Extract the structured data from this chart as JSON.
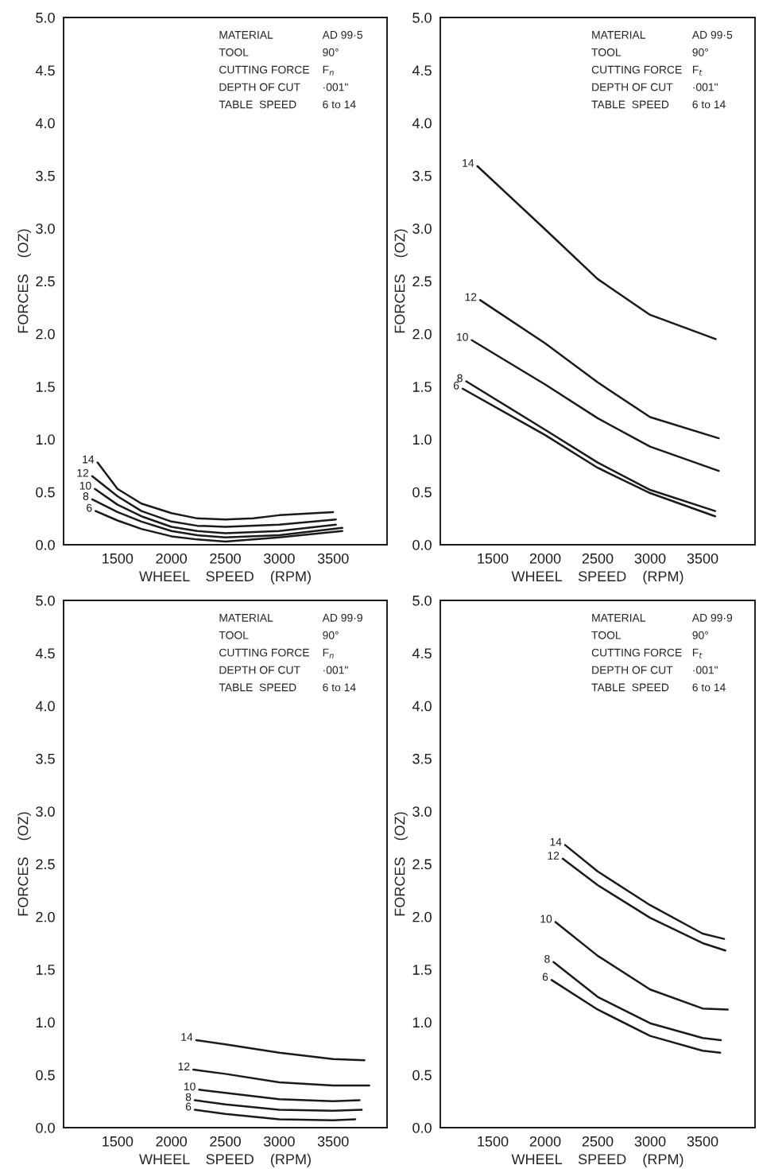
{
  "chart_data": [
    {
      "type": "line",
      "xlabel": "WHEEL    SPEED    (RPM)",
      "ylabel": "FORCES    (OZ)",
      "xlim": [
        1000,
        4000
      ],
      "xticks": [
        1500,
        2000,
        2500,
        3000,
        3500
      ],
      "ylim": [
        0,
        5
      ],
      "yticks": [
        {
          "value": 0,
          "label": "0.0"
        },
        {
          "value": 0.5,
          "label": "0.5"
        },
        {
          "value": 1,
          "label": "1.0"
        },
        {
          "value": 1.5,
          "label": "1.5"
        },
        {
          "value": 2,
          "label": "2.0"
        },
        {
          "value": 2.5,
          "label": "2.5"
        },
        {
          "value": 3,
          "label": "3.0"
        },
        {
          "value": 3.5,
          "label": "3.5"
        },
        {
          "value": 4,
          "label": "4.0"
        },
        {
          "value": 4.5,
          "label": "4.5"
        },
        {
          "value": 5,
          "label": "5.0"
        }
      ],
      "grid": false,
      "legend": false,
      "annotations": [
        "MATERIAL",
        "AD 99·5",
        "TOOL",
        "90°",
        "CUTTING FORCE",
        "F$_{n}$",
        "DEPTH OF CUT",
        "·001\"",
        "TABLE  SPEED",
        "6 to 14"
      ],
      "series": [
        {
          "name": "14",
          "color": "#1a1a1a",
          "x": [
            1315,
            1500,
            1722,
            2000,
            2240,
            2500,
            2760,
            3000,
            3500
          ],
          "values": [
            0.78,
            0.53,
            0.39,
            0.3,
            0.25,
            0.24,
            0.25,
            0.28,
            0.31
          ]
        },
        {
          "name": "12",
          "color": "#1a1a1a",
          "x": [
            1265,
            1500,
            1722,
            2000,
            2240,
            2500,
            3000,
            3525
          ],
          "values": [
            0.65,
            0.46,
            0.32,
            0.22,
            0.18,
            0.17,
            0.19,
            0.24
          ]
        },
        {
          "name": "10",
          "color": "#1a1a1a",
          "x": [
            1290,
            1500,
            1722,
            2000,
            2240,
            2500,
            3000,
            3525
          ],
          "values": [
            0.53,
            0.38,
            0.27,
            0.17,
            0.13,
            0.11,
            0.13,
            0.19
          ]
        },
        {
          "name": "8",
          "color": "#1a1a1a",
          "x": [
            1265,
            1500,
            1722,
            2000,
            2240,
            2500,
            3000,
            3585
          ],
          "values": [
            0.43,
            0.31,
            0.22,
            0.13,
            0.09,
            0.07,
            0.09,
            0.16
          ]
        },
        {
          "name": "6",
          "color": "#1a1a1a",
          "x": [
            1297,
            1500,
            1722,
            2000,
            2240,
            2500,
            3000,
            3585
          ],
          "values": [
            0.32,
            0.23,
            0.15,
            0.08,
            0.05,
            0.03,
            0.07,
            0.13
          ]
        }
      ]
    },
    {
      "type": "line",
      "xlabel": "WHEEL    SPEED    (RPM)",
      "ylabel": "FORCES    (OZ)",
      "xlim": [
        1000,
        4000
      ],
      "xticks": [
        1500,
        2000,
        2500,
        3000,
        3500
      ],
      "ylim": [
        0,
        5
      ],
      "yticks": [
        {
          "value": 0,
          "label": "0.0"
        },
        {
          "value": 0.5,
          "label": "0.5"
        },
        {
          "value": 1,
          "label": "1.0"
        },
        {
          "value": 1.5,
          "label": "1.5"
        },
        {
          "value": 2,
          "label": "2.0"
        },
        {
          "value": 2.5,
          "label": "2.5"
        },
        {
          "value": 3,
          "label": "3.0"
        },
        {
          "value": 3.5,
          "label": "3.5"
        },
        {
          "value": 4,
          "label": "4.0"
        },
        {
          "value": 4.5,
          "label": "4.5"
        },
        {
          "value": 5,
          "label": "5.0"
        }
      ],
      "grid": false,
      "legend": false,
      "annotations": [
        "MATERIAL",
        "AD 99·5",
        "TOOL",
        "90°",
        "CUTTING FORCE",
        "F$_{t}$",
        "DEPTH OF CUT",
        "·001\"",
        "TABLE  SPEED",
        "6 to 14"
      ],
      "series": [
        {
          "name": "14",
          "color": "#1a1a1a",
          "x": [
            1354,
            2000,
            2500,
            3000,
            3625
          ],
          "values": [
            3.59,
            2.99,
            2.52,
            2.18,
            1.95
          ]
        },
        {
          "name": "12",
          "color": "#1a1a1a",
          "x": [
            1380,
            2000,
            2500,
            3000,
            3654
          ],
          "values": [
            2.32,
            1.91,
            1.54,
            1.21,
            1.01
          ]
        },
        {
          "name": "10",
          "color": "#1a1a1a",
          "x": [
            1300,
            2000,
            2500,
            3000,
            3654
          ],
          "values": [
            1.94,
            1.52,
            1.2,
            0.93,
            0.7
          ]
        },
        {
          "name": "8",
          "color": "#1a1a1a",
          "x": [
            1247,
            2000,
            2500,
            3000,
            3620
          ],
          "values": [
            1.55,
            1.09,
            0.78,
            0.52,
            0.32
          ]
        },
        {
          "name": "6",
          "color": "#1a1a1a",
          "x": [
            1213,
            2000,
            2500,
            3000,
            3620
          ],
          "values": [
            1.48,
            1.04,
            0.73,
            0.49,
            0.27
          ]
        }
      ]
    },
    {
      "type": "line",
      "xlabel": "WHEEL    SPEED    (RPM)",
      "ylabel": "FORCES    (OZ)",
      "xlim": [
        1000,
        4000
      ],
      "xticks": [
        1500,
        2000,
        2500,
        3000,
        3500
      ],
      "ylim": [
        0,
        5
      ],
      "yticks": [
        {
          "value": 0,
          "label": "0.0"
        },
        {
          "value": 0.5,
          "label": "0.5"
        },
        {
          "value": 1,
          "label": "1.0"
        },
        {
          "value": 1.5,
          "label": "1.5"
        },
        {
          "value": 2,
          "label": "2.0"
        },
        {
          "value": 2.5,
          "label": "2.5"
        },
        {
          "value": 3,
          "label": "3.0"
        },
        {
          "value": 3.5,
          "label": "3.5"
        },
        {
          "value": 4,
          "label": "4.0"
        },
        {
          "value": 4.5,
          "label": "4.5"
        },
        {
          "value": 5,
          "label": "5.0"
        }
      ],
      "grid": false,
      "legend": false,
      "annotations": [
        "MATERIAL",
        "AD 99·9",
        "TOOL",
        "90°",
        "CUTTING FORCE",
        "F$_{n}$",
        "DEPTH OF CUT",
        "·001\"",
        "TABLE  SPEED",
        "6 to 14"
      ],
      "series": [
        {
          "name": "14",
          "color": "#1a1a1a",
          "x": [
            2230,
            2500,
            3000,
            3500,
            3790
          ],
          "values": [
            0.83,
            0.79,
            0.71,
            0.65,
            0.64
          ]
        },
        {
          "name": "12",
          "color": "#1a1a1a",
          "x": [
            2203,
            2500,
            3000,
            3500,
            3835
          ],
          "values": [
            0.55,
            0.51,
            0.43,
            0.4,
            0.4
          ]
        },
        {
          "name": "10",
          "color": "#1a1a1a",
          "x": [
            2257,
            2500,
            3000,
            3500,
            3745
          ],
          "values": [
            0.36,
            0.33,
            0.27,
            0.25,
            0.26
          ]
        },
        {
          "name": "8",
          "color": "#1a1a1a",
          "x": [
            2217,
            2500,
            3000,
            3500,
            3765
          ],
          "values": [
            0.26,
            0.22,
            0.17,
            0.16,
            0.17
          ]
        },
        {
          "name": "6",
          "color": "#1a1a1a",
          "x": [
            2217,
            2500,
            3000,
            3500,
            3705
          ],
          "values": [
            0.17,
            0.13,
            0.08,
            0.07,
            0.08
          ]
        }
      ]
    },
    {
      "type": "line",
      "xlabel": "WHEEL    SPEED    (RPM)",
      "ylabel": "FORCES    (OZ)",
      "xlim": [
        1000,
        4000
      ],
      "xticks": [
        1500,
        2000,
        2500,
        3000,
        3500
      ],
      "ylim": [
        0,
        5
      ],
      "yticks": [
        {
          "value": 0,
          "label": "0.0"
        },
        {
          "value": 0.5,
          "label": "0.5"
        },
        {
          "value": 1,
          "label": "1.0"
        },
        {
          "value": 1.5,
          "label": "1.5"
        },
        {
          "value": 2,
          "label": "2.0"
        },
        {
          "value": 2.5,
          "label": "2.5"
        },
        {
          "value": 3,
          "label": "3.0"
        },
        {
          "value": 3.5,
          "label": "3.5"
        },
        {
          "value": 4,
          "label": "4.0"
        },
        {
          "value": 4.5,
          "label": "4.5"
        },
        {
          "value": 5,
          "label": "5.0"
        }
      ],
      "grid": false,
      "legend": false,
      "annotations": [
        "MATERIAL",
        "AD 99·9",
        "TOOL",
        "90°",
        "CUTTING FORCE",
        "F$_{t}$",
        "DEPTH OF CUT",
        "·001\"",
        "TABLE  SPEED",
        "6 to 14"
      ],
      "series": [
        {
          "name": "14",
          "color": "#1a1a1a",
          "x": [
            2190,
            2500,
            3000,
            3500,
            3705
          ],
          "values": [
            2.68,
            2.43,
            2.11,
            1.84,
            1.79
          ]
        },
        {
          "name": "12",
          "color": "#1a1a1a",
          "x": [
            2167,
            2500,
            3000,
            3500,
            3717
          ],
          "values": [
            2.55,
            2.3,
            1.99,
            1.75,
            1.68
          ]
        },
        {
          "name": "10",
          "color": "#1a1a1a",
          "x": [
            2098,
            2500,
            3000,
            3500,
            3740
          ],
          "values": [
            1.95,
            1.63,
            1.31,
            1.13,
            1.12
          ]
        },
        {
          "name": "8",
          "color": "#1a1a1a",
          "x": [
            2079,
            2500,
            3000,
            3500,
            3675
          ],
          "values": [
            1.57,
            1.24,
            0.99,
            0.85,
            0.83
          ]
        },
        {
          "name": "6",
          "color": "#1a1a1a",
          "x": [
            2061,
            2500,
            3000,
            3500,
            3668
          ],
          "values": [
            1.4,
            1.12,
            0.87,
            0.73,
            0.71
          ]
        }
      ]
    }
  ]
}
